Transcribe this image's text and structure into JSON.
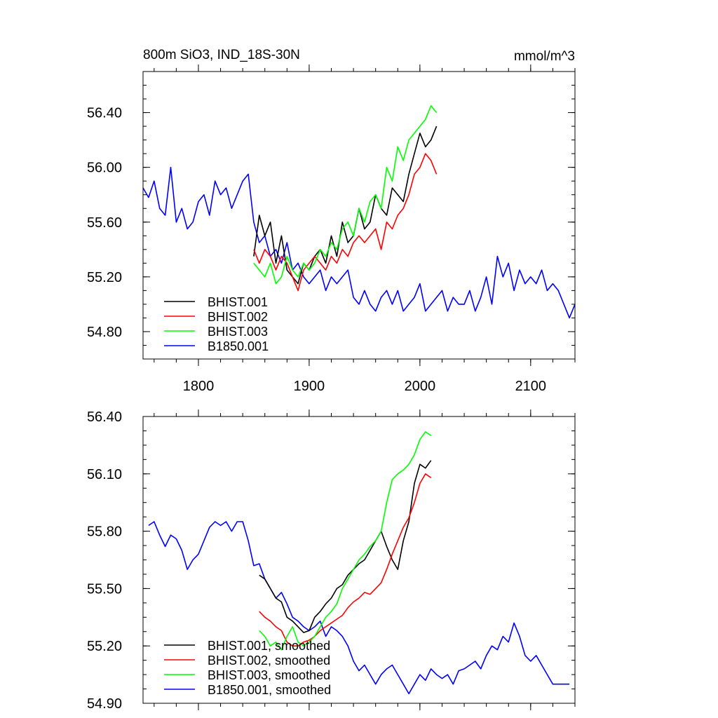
{
  "chart_data": [
    {
      "type": "line",
      "title": "800m SiO3, IND_18S-30N",
      "units": "mmol/m^3",
      "xlim": [
        1750,
        2140
      ],
      "ylim": [
        54.6,
        56.7
      ],
      "x_ticks": [
        1800,
        1900,
        2000,
        2100
      ],
      "x_tick_labels": [
        "1800",
        "1900",
        "2000",
        "2100"
      ],
      "y_ticks": [
        54.8,
        55.2,
        55.6,
        56.0,
        56.4
      ],
      "y_tick_labels": [
        "54.80",
        "55.20",
        "55.60",
        "56.00",
        "56.40"
      ],
      "legend_position": "bottom-left",
      "series": [
        {
          "name": "B1850.001",
          "color": "#0000ff",
          "x": [
            1750,
            1755,
            1760,
            1765,
            1770,
            1775,
            1780,
            1785,
            1790,
            1795,
            1800,
            1805,
            1810,
            1815,
            1820,
            1825,
            1830,
            1835,
            1840,
            1845,
            1850,
            1855,
            1860,
            1865,
            1870,
            1875,
            1880,
            1885,
            1890,
            1895,
            1900,
            1905,
            1910,
            1915,
            1920,
            1925,
            1930,
            1935,
            1940,
            1945,
            1950,
            1955,
            1960,
            1965,
            1970,
            1975,
            1980,
            1985,
            1990,
            1995,
            2000,
            2005,
            2010,
            2015,
            2020,
            2025,
            2030,
            2035,
            2040,
            2045,
            2050,
            2055,
            2060,
            2065,
            2070,
            2075,
            2080,
            2085,
            2090,
            2095,
            2100,
            2105,
            2110,
            2115,
            2120,
            2125,
            2130,
            2135,
            2140
          ],
          "values": [
            55.85,
            55.78,
            55.9,
            55.7,
            55.65,
            56.0,
            55.6,
            55.7,
            55.55,
            55.6,
            55.75,
            55.8,
            55.65,
            55.9,
            55.8,
            55.85,
            55.7,
            55.8,
            55.9,
            55.95,
            55.6,
            55.45,
            55.5,
            55.35,
            55.4,
            55.3,
            55.45,
            55.25,
            55.3,
            55.2,
            55.15,
            55.2,
            55.25,
            55.1,
            55.2,
            55.15,
            55.2,
            55.25,
            55.05,
            55.0,
            55.1,
            55.0,
            54.95,
            55.05,
            55.1,
            55.0,
            55.1,
            54.95,
            55.0,
            55.05,
            55.15,
            54.95,
            55.0,
            55.05,
            55.1,
            54.95,
            55.05,
            55.0,
            55.0,
            55.1,
            54.95,
            55.05,
            55.2,
            55.0,
            55.35,
            55.2,
            55.3,
            55.1,
            55.25,
            55.15,
            55.2,
            55.15,
            55.25,
            55.1,
            55.15,
            55.1,
            55.0,
            54.9,
            55.0
          ]
        },
        {
          "name": "BHIST.001",
          "color": "#000000",
          "x": [
            1850,
            1855,
            1860,
            1865,
            1870,
            1875,
            1880,
            1885,
            1890,
            1895,
            1900,
            1905,
            1910,
            1915,
            1920,
            1925,
            1930,
            1935,
            1940,
            1945,
            1950,
            1955,
            1960,
            1965,
            1970,
            1975,
            1980,
            1985,
            1990,
            1995,
            2000,
            2005,
            2010,
            2015
          ],
          "values": [
            55.35,
            55.65,
            55.5,
            55.6,
            55.3,
            55.5,
            55.25,
            55.2,
            55.15,
            55.3,
            55.25,
            55.35,
            55.4,
            55.3,
            55.5,
            55.35,
            55.6,
            55.45,
            55.5,
            55.7,
            55.55,
            55.6,
            55.8,
            55.7,
            55.65,
            55.85,
            55.8,
            55.75,
            55.95,
            56.1,
            56.25,
            56.15,
            56.2,
            56.3
          ]
        },
        {
          "name": "BHIST.002",
          "color": "#ff0000",
          "x": [
            1850,
            1855,
            1860,
            1865,
            1870,
            1875,
            1880,
            1885,
            1890,
            1895,
            1900,
            1905,
            1910,
            1915,
            1920,
            1925,
            1930,
            1935,
            1940,
            1945,
            1950,
            1955,
            1960,
            1965,
            1970,
            1975,
            1980,
            1985,
            1990,
            1995,
            2000,
            2005,
            2010,
            2015
          ],
          "values": [
            55.4,
            55.3,
            55.4,
            55.35,
            55.25,
            55.35,
            55.3,
            55.2,
            55.1,
            55.25,
            55.3,
            55.35,
            55.3,
            55.25,
            55.35,
            55.3,
            55.4,
            55.35,
            55.45,
            55.5,
            55.45,
            55.5,
            55.55,
            55.4,
            55.6,
            55.55,
            55.65,
            55.7,
            55.8,
            55.95,
            56.0,
            56.1,
            56.05,
            55.95
          ]
        },
        {
          "name": "BHIST.003",
          "color": "#00ff00",
          "x": [
            1850,
            1855,
            1860,
            1865,
            1870,
            1875,
            1880,
            1885,
            1890,
            1895,
            1900,
            1905,
            1910,
            1915,
            1920,
            1925,
            1930,
            1935,
            1940,
            1945,
            1950,
            1955,
            1960,
            1965,
            1970,
            1975,
            1980,
            1985,
            1990,
            1995,
            2000,
            2005,
            2010,
            2015
          ],
          "values": [
            55.3,
            55.25,
            55.2,
            55.3,
            55.15,
            55.2,
            55.35,
            55.25,
            55.2,
            55.3,
            55.25,
            55.3,
            55.4,
            55.35,
            55.45,
            55.4,
            55.55,
            55.6,
            55.5,
            55.7,
            55.6,
            55.75,
            55.8,
            55.7,
            56.0,
            55.9,
            56.15,
            56.05,
            56.2,
            56.25,
            56.3,
            56.35,
            56.45,
            56.4
          ]
        }
      ]
    },
    {
      "type": "line",
      "xlim": [
        1750,
        2140
      ],
      "ylim": [
        54.9,
        56.4
      ],
      "x_ticks": [
        1800,
        1900,
        2000,
        2100
      ],
      "y_ticks": [
        54.9,
        55.2,
        55.5,
        55.8,
        56.1,
        56.4
      ],
      "y_tick_labels": [
        "54.90",
        "55.20",
        "55.50",
        "55.80",
        "56.10",
        "56.40"
      ],
      "legend_position": "bottom-left",
      "series": [
        {
          "name": "B1850.001, smoothed",
          "color": "#0000ff",
          "x": [
            1755,
            1760,
            1765,
            1770,
            1775,
            1780,
            1785,
            1790,
            1795,
            1800,
            1805,
            1810,
            1815,
            1820,
            1825,
            1830,
            1835,
            1840,
            1845,
            1850,
            1855,
            1860,
            1865,
            1870,
            1875,
            1880,
            1885,
            1890,
            1895,
            1900,
            1905,
            1910,
            1915,
            1920,
            1925,
            1930,
            1935,
            1940,
            1945,
            1950,
            1955,
            1960,
            1965,
            1970,
            1975,
            1980,
            1985,
            1990,
            1995,
            2000,
            2005,
            2010,
            2015,
            2020,
            2025,
            2030,
            2035,
            2040,
            2045,
            2050,
            2055,
            2060,
            2065,
            2070,
            2075,
            2080,
            2085,
            2090,
            2095,
            2100,
            2105,
            2110,
            2115,
            2120,
            2125,
            2130,
            2135
          ],
          "values": [
            55.83,
            55.85,
            55.78,
            55.72,
            55.78,
            55.76,
            55.7,
            55.6,
            55.65,
            55.68,
            55.75,
            55.82,
            55.85,
            55.83,
            55.85,
            55.8,
            55.85,
            55.85,
            55.75,
            55.62,
            55.63,
            55.55,
            55.5,
            55.45,
            55.48,
            55.42,
            55.35,
            55.33,
            55.3,
            55.28,
            55.3,
            55.33,
            55.25,
            55.3,
            55.28,
            55.25,
            55.2,
            55.12,
            55.07,
            55.1,
            55.05,
            55.0,
            55.05,
            55.08,
            55.1,
            55.05,
            55.0,
            54.95,
            55.0,
            55.05,
            55.02,
            55.08,
            55.05,
            55.03,
            55.05,
            55.0,
            55.07,
            55.08,
            55.1,
            55.12,
            55.08,
            55.15,
            55.2,
            55.18,
            55.25,
            55.22,
            55.32,
            55.25,
            55.15,
            55.12,
            55.15,
            55.1,
            55.05,
            55.0,
            55.0,
            55.0,
            55.0
          ]
        },
        {
          "name": "BHIST.001, smoothed",
          "color": "#000000",
          "x": [
            1855,
            1860,
            1865,
            1870,
            1875,
            1880,
            1885,
            1890,
            1895,
            1900,
            1905,
            1910,
            1915,
            1920,
            1925,
            1930,
            1935,
            1940,
            1945,
            1950,
            1955,
            1960,
            1965,
            1970,
            1975,
            1980,
            1985,
            1990,
            1995,
            2000,
            2005,
            2010
          ],
          "values": [
            55.57,
            55.55,
            55.5,
            55.45,
            55.43,
            55.35,
            55.33,
            55.3,
            55.27,
            55.28,
            55.35,
            55.38,
            55.42,
            55.45,
            55.5,
            55.52,
            55.57,
            55.6,
            55.63,
            55.65,
            55.7,
            55.75,
            55.8,
            55.72,
            55.65,
            55.6,
            55.75,
            55.85,
            56.05,
            56.15,
            56.13,
            56.17
          ]
        },
        {
          "name": "BHIST.002, smoothed",
          "color": "#ff0000",
          "x": [
            1855,
            1860,
            1865,
            1870,
            1875,
            1880,
            1885,
            1890,
            1895,
            1900,
            1905,
            1910,
            1915,
            1920,
            1925,
            1930,
            1935,
            1940,
            1945,
            1950,
            1955,
            1960,
            1965,
            1970,
            1975,
            1980,
            1985,
            1990,
            1995,
            2000,
            2005,
            2010
          ],
          "values": [
            55.38,
            55.35,
            55.33,
            55.3,
            55.28,
            55.22,
            55.2,
            55.2,
            55.22,
            55.23,
            55.25,
            55.28,
            55.3,
            55.32,
            55.34,
            55.36,
            55.4,
            55.43,
            55.45,
            55.48,
            55.47,
            55.5,
            55.53,
            55.6,
            55.68,
            55.75,
            55.82,
            55.87,
            55.95,
            56.05,
            56.1,
            56.08
          ]
        },
        {
          "name": "BHIST.003, smoothed",
          "color": "#00ff00",
          "x": [
            1855,
            1860,
            1865,
            1870,
            1875,
            1880,
            1885,
            1890,
            1895,
            1900,
            1905,
            1910,
            1915,
            1920,
            1925,
            1930,
            1935,
            1940,
            1945,
            1950,
            1955,
            1960,
            1965,
            1970,
            1975,
            1980,
            1985,
            1990,
            1995,
            2000,
            2005,
            2010
          ],
          "values": [
            55.28,
            55.25,
            55.2,
            55.22,
            55.18,
            55.25,
            55.3,
            55.22,
            55.2,
            55.22,
            55.25,
            55.3,
            55.35,
            55.38,
            55.42,
            55.5,
            55.55,
            55.6,
            55.65,
            55.68,
            55.72,
            55.75,
            55.8,
            55.95,
            56.07,
            56.1,
            56.12,
            56.15,
            56.2,
            56.28,
            56.32,
            56.3
          ]
        }
      ]
    }
  ]
}
